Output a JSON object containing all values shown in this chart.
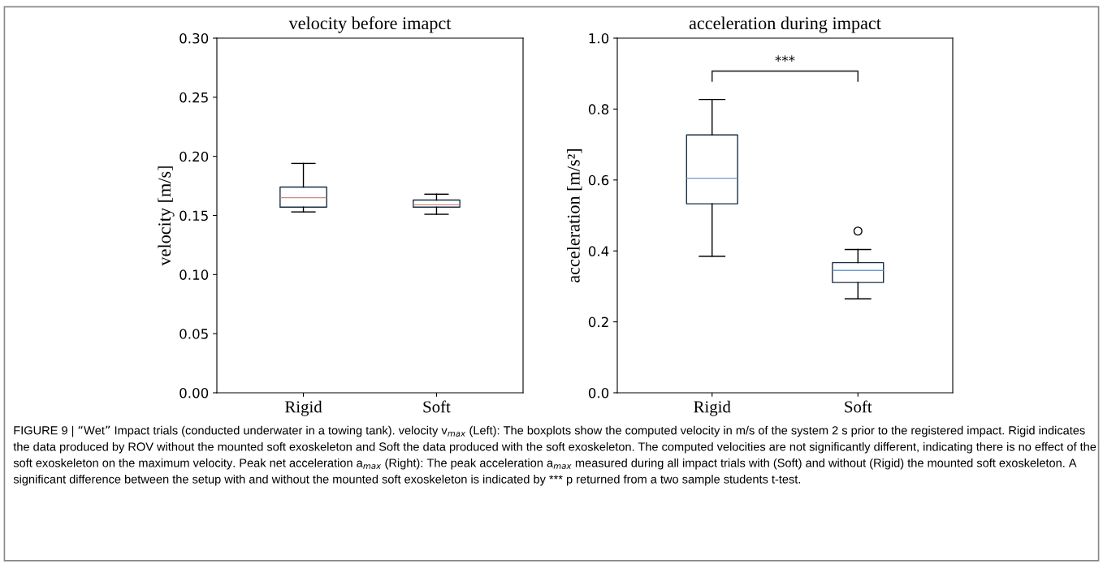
{
  "chart_data": [
    {
      "type": "box",
      "title": "velocity before imapct",
      "ylabel": "velocity [m/s]",
      "categories": [
        "Rigid",
        "Soft"
      ],
      "ylim": [
        0,
        0.3
      ],
      "yticks": [
        {
          "value": 0,
          "label": "0.00"
        },
        0.05,
        {
          "value": 0.1,
          "label": "0.10"
        },
        0.15,
        {
          "value": 0.2,
          "label": "0.20"
        },
        0.25,
        {
          "value": 0.3,
          "label": "0.30"
        }
      ],
      "grid": false,
      "series": [
        {
          "color": "#1b2f44",
          "boxes": [
            {
              "low": 0.153,
              "q1": 0.157,
              "median": 0.165,
              "q3": 0.174,
              "high": 0.194
            },
            {
              "low": 0.151,
              "q1": 0.157,
              "median": 0.159,
              "q3": 0.163,
              "high": 0.168
            }
          ]
        }
      ]
    },
    {
      "type": "box",
      "title": "acceleration during impact",
      "ylabel": "acceleration [m/s²]",
      "categories": [
        "Rigid",
        "Soft"
      ],
      "ylim": [
        0,
        1
      ],
      "yticks": [
        {
          "value": 0,
          "label": "0.0"
        },
        0.2,
        0.4,
        0.6,
        0.8,
        {
          "value": 1,
          "label": "1.0"
        }
      ],
      "grid": false,
      "series": [
        {
          "color": "#1b2f44",
          "boxes": [
            {
              "low": 0.385,
              "q1": 0.533,
              "median": 0.605,
              "q3": 0.727,
              "high": 0.827
            },
            {
              "low": 0.265,
              "q1": 0.311,
              "median": 0.345,
              "q3": 0.367,
              "high": 0.404,
              "outliers": [
                0.456
              ]
            }
          ]
        }
      ],
      "annotations": [
        "***"
      ]
    },
    {
      "type": "other",
      "annotations": [
        "FIGURE 9 | “Wet” Impact trials (conducted underwater in a towing tank). velocity v$_{max}$ (Left): The boxplots show the computed velocity in m/s of the system 2 s prior to the registered impact. Rigid indicates the data produced by ROV without the mounted soft exoskeleton and Soft the data produced with the soft exoskeleton. The computed velocities are not significantly different, indicating there is no effect of the soft exoskeleton on the maximum velocity. Peak net acceleration a$_{max}$ (Right): The peak acceleration a$_{max}$ measured during all impact trials with (Soft) and without (Rigid) the mounted soft exoskeleton. A significant difference between the setup with and without the mounted soft exoskeleton is indicated by *** p returned from a two sample students t-test."
      ]
    }
  ]
}
